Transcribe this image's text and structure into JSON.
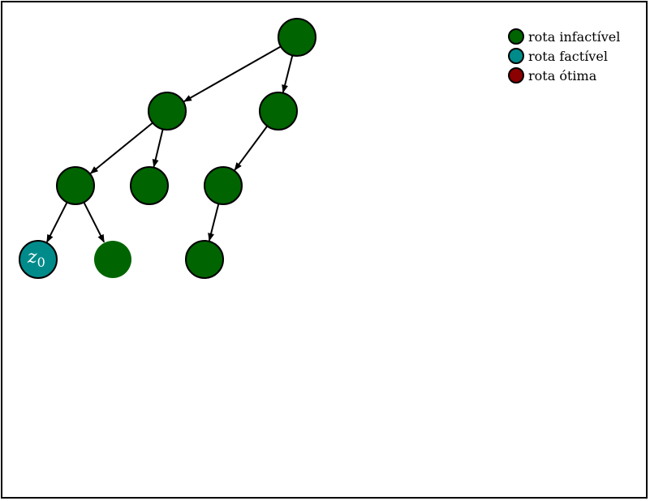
{
  "diagram": {
    "type": "tree",
    "colors": {
      "infeasible": "#006400",
      "feasible": "#008B8B",
      "optimal": "#8B0000",
      "stroke": "#000000"
    },
    "nodes": [
      {
        "id": "n0",
        "status": "infeasible",
        "label": ""
      },
      {
        "id": "n1",
        "status": "infeasible",
        "label": ""
      },
      {
        "id": "n2",
        "status": "infeasible",
        "label": ""
      },
      {
        "id": "n3",
        "status": "infeasible",
        "label": ""
      },
      {
        "id": "n4",
        "status": "infeasible",
        "label": ""
      },
      {
        "id": "n5",
        "status": "infeasible",
        "label": ""
      },
      {
        "id": "n6",
        "status": "feasible",
        "label": "z0"
      },
      {
        "id": "n7",
        "status": "infeasible-unoutlined",
        "label": ""
      },
      {
        "id": "n8",
        "status": "infeasible",
        "label": ""
      }
    ],
    "edges": [
      {
        "from": "n0",
        "to": "n1"
      },
      {
        "from": "n0",
        "to": "n2"
      },
      {
        "from": "n1",
        "to": "n3"
      },
      {
        "from": "n1",
        "to": "n4"
      },
      {
        "from": "n2",
        "to": "n5"
      },
      {
        "from": "n3",
        "to": "n6"
      },
      {
        "from": "n3",
        "to": "n7"
      },
      {
        "from": "n5",
        "to": "n8"
      }
    ]
  },
  "legend": {
    "items": [
      {
        "label": "rota infactível",
        "color": "#006400"
      },
      {
        "label": "rota factível",
        "color": "#008B8B"
      },
      {
        "label": "rota ótima",
        "color": "#8B0000"
      }
    ]
  }
}
